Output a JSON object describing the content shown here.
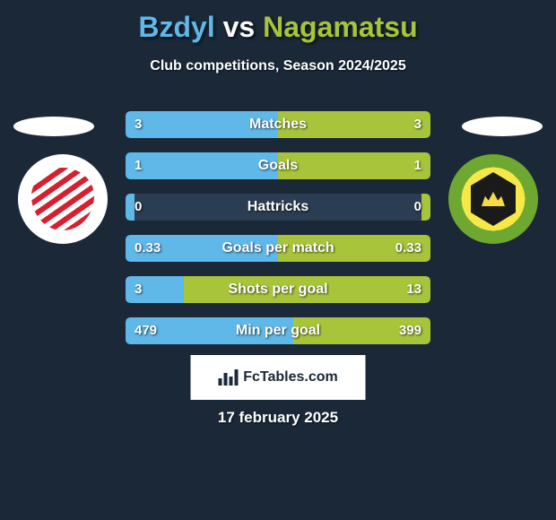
{
  "header": {
    "player1": "Bzdyl",
    "vs": "vs",
    "player2": "Nagamatsu",
    "subtitle": "Club competitions, Season 2024/2025"
  },
  "colors": {
    "p1": "#5fb8e8",
    "p2": "#a8c43a",
    "bg": "#1a2838"
  },
  "bars": [
    {
      "label": "Matches",
      "left_val": "3",
      "right_val": "3",
      "left_pct": 50,
      "right_pct": 50
    },
    {
      "label": "Goals",
      "left_val": "1",
      "right_val": "1",
      "left_pct": 50,
      "right_pct": 50
    },
    {
      "label": "Hattricks",
      "left_val": "0",
      "right_val": "0",
      "left_pct": 3,
      "right_pct": 3
    },
    {
      "label": "Goals per match",
      "left_val": "0.33",
      "right_val": "0.33",
      "left_pct": 50,
      "right_pct": 50
    },
    {
      "label": "Shots per goal",
      "left_val": "3",
      "right_val": "13",
      "left_pct": 19,
      "right_pct": 81
    },
    {
      "label": "Min per goal",
      "left_val": "479",
      "right_val": "399",
      "left_pct": 55,
      "right_pct": 45
    }
  ],
  "footer": {
    "brand": "FcTables.com",
    "date": "17 february 2025"
  }
}
